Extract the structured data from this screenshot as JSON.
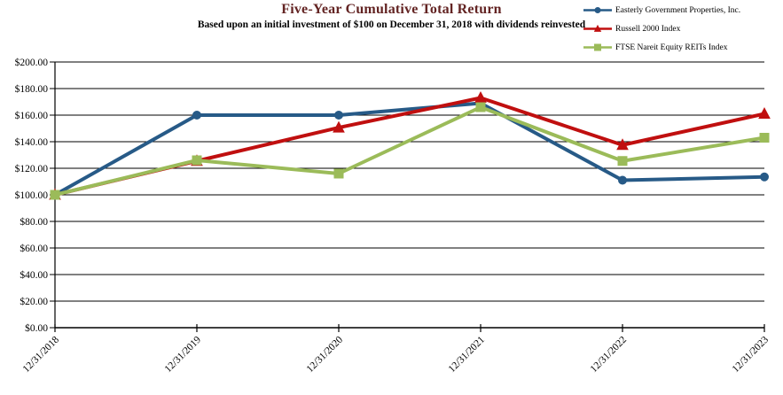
{
  "header": {
    "title": "Five-Year Cumulative Total Return",
    "subtitle": "Based upon an initial investment of $100 on December 31, 2018 with dividends reinvested",
    "title_color": "#632423"
  },
  "chart_data": {
    "type": "line",
    "title": "Five-Year Cumulative Total Return",
    "subtitle": "Based upon an initial investment of $100 on December 31, 2018 with dividends reinvested",
    "categories": [
      "12/31/2018",
      "12/31/2019",
      "12/31/2020",
      "12/31/2021",
      "12/31/2022",
      "12/31/2023"
    ],
    "series": [
      {
        "name": "Easterly Government Properties, Inc.",
        "marker": "circle",
        "color": "#275A87",
        "values": [
          100.0,
          160.0,
          160.0,
          169.0,
          111.0,
          113.5
        ]
      },
      {
        "name": "Russell 2000 Index",
        "marker": "triangle",
        "color": "#C00F0F",
        "values": [
          100.0,
          125.5,
          150.6,
          173.0,
          137.5,
          161.0
        ]
      },
      {
        "name": "FTSE Nareit Equity REITs Index",
        "marker": "square",
        "color": "#9BBB59",
        "values": [
          100.0,
          126.0,
          116.0,
          166.0,
          125.5,
          143.0
        ]
      }
    ],
    "xlabel": "",
    "ylabel": "",
    "ylim": [
      0,
      200
    ],
    "ytick_step": 20,
    "ytick_labels": [
      "$0.00",
      "$20.00",
      "$40.00",
      "$60.00",
      "$80.00",
      "$100.00",
      "$120.00",
      "$140.00",
      "$160.00",
      "$180.00",
      "$200.00"
    ],
    "grid": true,
    "legend_position": "top-right",
    "axis_color": "#000000",
    "grid_color": "#000000"
  }
}
